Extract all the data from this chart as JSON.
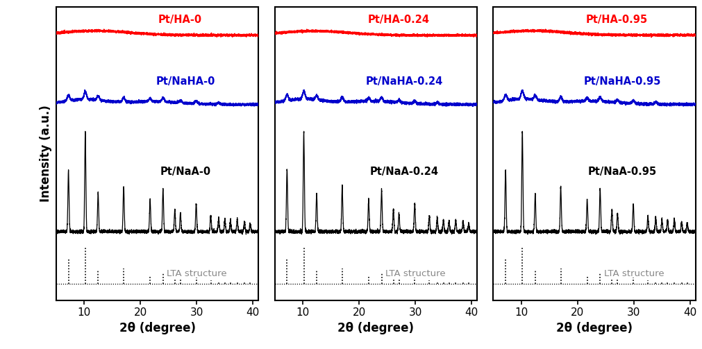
{
  "panels": [
    {
      "label_HA": "Pt/HA-0",
      "label_NaHA": "Pt/NaHA-0",
      "label_NaA": "Pt/NaA-0"
    },
    {
      "label_HA": "Pt/HA-0.24",
      "label_NaHA": "Pt/NaHA-0.24",
      "label_NaA": "Pt/NaA-0.24"
    },
    {
      "label_HA": "Pt/HA-0.95",
      "label_NaHA": "Pt/NaHA-0.95",
      "label_NaA": "Pt/NaA-0.95"
    }
  ],
  "xlabel": "2θ (degree)",
  "ylabel": "Intensity (a.u.)",
  "xticks": [
    10,
    20,
    30,
    40
  ],
  "color_HA": "#ff0000",
  "color_NaHA": "#0000cc",
  "color_NaA": "#000000",
  "color_LTA": "#000000",
  "lta_label": "LTA structure",
  "lta_label_color": "#888888",
  "lta_peaks": [
    7.18,
    10.17,
    12.45,
    17.0,
    21.7,
    24.0,
    26.1,
    27.1,
    29.9,
    32.5,
    33.9,
    35.0,
    36.0,
    37.2,
    38.5,
    39.5
  ],
  "lta_heights": [
    0.72,
    1.0,
    0.38,
    0.42,
    0.2,
    0.3,
    0.14,
    0.12,
    0.18,
    0.1,
    0.08,
    0.07,
    0.06,
    0.07,
    0.06,
    0.05
  ],
  "naa_peaks": [
    7.18,
    10.17,
    12.45,
    17.0,
    21.7,
    24.0,
    26.1,
    27.1,
    29.9,
    32.5,
    33.9,
    35.0,
    36.0,
    37.2,
    38.5,
    39.5
  ],
  "naa_heights": [
    0.62,
    1.0,
    0.38,
    0.45,
    0.32,
    0.42,
    0.22,
    0.18,
    0.28,
    0.16,
    0.14,
    0.12,
    0.11,
    0.12,
    0.1,
    0.08
  ],
  "naha_peaks": [
    7.18,
    10.17,
    12.45,
    17.0,
    21.7,
    24.0,
    27.1,
    29.9,
    33.9
  ],
  "naha_heights": [
    0.055,
    0.075,
    0.04,
    0.045,
    0.03,
    0.038,
    0.022,
    0.025,
    0.018
  ],
  "background_color": "#ffffff"
}
